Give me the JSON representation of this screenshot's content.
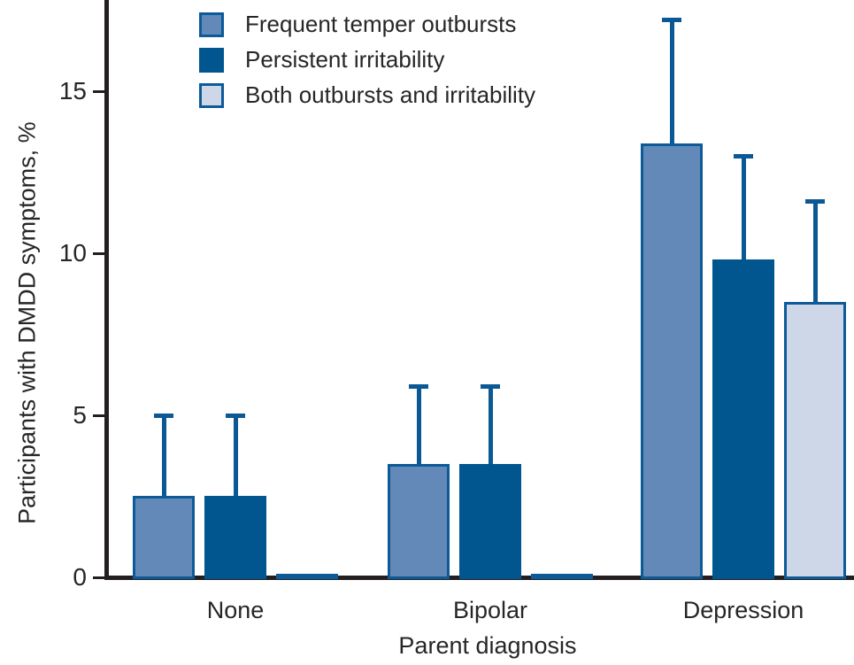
{
  "figure": {
    "background": "#ffffff",
    "text_color": "#262626",
    "axis_color": "#231f20"
  },
  "chart_data": {
    "type": "bar",
    "title": "",
    "xlabel": "Parent diagnosis",
    "ylabel": "Participants with DMDD symptoms, %",
    "ylim": [
      0,
      17.9
    ],
    "yticks": [
      0,
      5,
      10,
      15
    ],
    "grid": false,
    "legend_position": "top-left-inside",
    "error_bar_color": "#0b5994",
    "categories": [
      "None",
      "Bipolar",
      "Depression"
    ],
    "series": [
      {
        "name": "Frequent temper outbursts",
        "values": [
          2.5,
          3.5,
          13.4
        ],
        "error_top": [
          5.0,
          5.9,
          17.2
        ],
        "fill": "#6289b8",
        "border": "#0d5a99"
      },
      {
        "name": "Persistent irritability",
        "values": [
          2.5,
          3.5,
          9.8
        ],
        "error_top": [
          5.0,
          5.9,
          13.0
        ],
        "fill": "#01568f",
        "border": "#01568f"
      },
      {
        "name": "Both outbursts and irritability",
        "values": [
          0.1,
          0.1,
          8.5
        ],
        "error_top": [
          null,
          null,
          11.6
        ],
        "fill": "#cdd7e7",
        "border": "#0d5a99"
      }
    ]
  }
}
